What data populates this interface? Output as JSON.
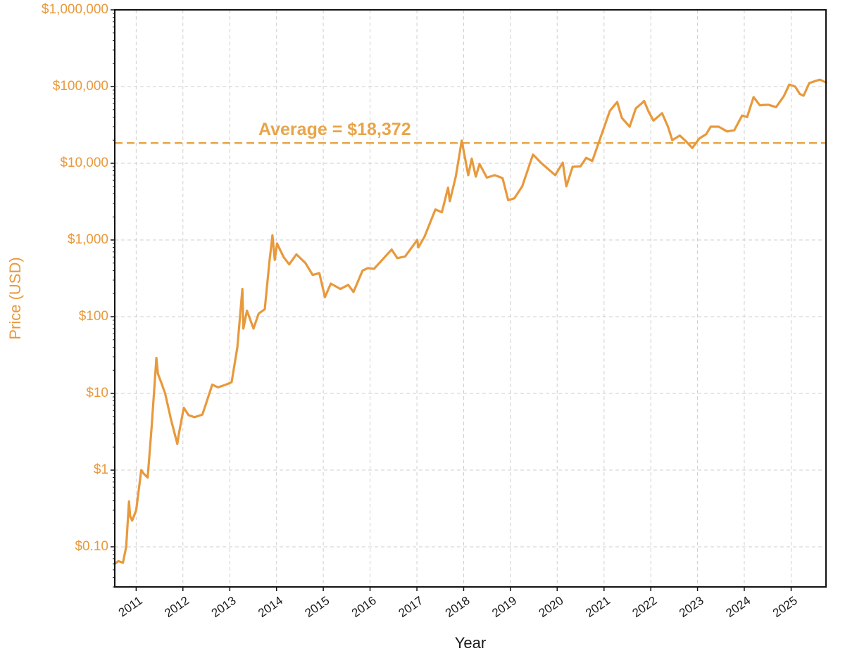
{
  "chart_data": {
    "type": "line",
    "xlabel": "Year",
    "ylabel": "Price (USD)",
    "y_scale": "log",
    "ylim": [
      0.03,
      1000000
    ],
    "xlim": [
      "2010-07-18",
      "2025-09-30"
    ],
    "grid": true,
    "colors": {
      "line": "#e8993c",
      "average": "#e8a549",
      "axis_text": "#e8993c"
    },
    "y_ticks": [
      {
        "value": 0.1,
        "label": "$0.10"
      },
      {
        "value": 1,
        "label": "$1"
      },
      {
        "value": 10,
        "label": "$10"
      },
      {
        "value": 100,
        "label": "$100"
      },
      {
        "value": 1000,
        "label": "$1,000"
      },
      {
        "value": 10000,
        "label": "$10,000"
      },
      {
        "value": 100000,
        "label": "$100,000"
      },
      {
        "value": 1000000,
        "label": "$1,000,000"
      }
    ],
    "x_ticks": [
      {
        "value": "2011-01-01",
        "label": "2011"
      },
      {
        "value": "2012-01-01",
        "label": "2012"
      },
      {
        "value": "2013-01-01",
        "label": "2013"
      },
      {
        "value": "2014-01-01",
        "label": "2014"
      },
      {
        "value": "2015-01-01",
        "label": "2015"
      },
      {
        "value": "2016-01-01",
        "label": "2016"
      },
      {
        "value": "2017-01-01",
        "label": "2017"
      },
      {
        "value": "2018-01-01",
        "label": "2018"
      },
      {
        "value": "2019-01-01",
        "label": "2019"
      },
      {
        "value": "2020-01-01",
        "label": "2020"
      },
      {
        "value": "2021-01-01",
        "label": "2021"
      },
      {
        "value": "2022-01-01",
        "label": "2022"
      },
      {
        "value": "2023-01-01",
        "label": "2023"
      },
      {
        "value": "2024-01-01",
        "label": "2024"
      },
      {
        "value": "2025-01-01",
        "label": "2025"
      }
    ],
    "average": {
      "value": 18372,
      "label": "Average = $18,372"
    },
    "series": [
      {
        "x": [
          "2010-07-18",
          "2010-08-15",
          "2010-09-20",
          "2010-10-15",
          "2010-11-06",
          "2010-11-15",
          "2010-12-01",
          "2011-01-01",
          "2011-02-10",
          "2011-03-01",
          "2011-04-01",
          "2011-05-01",
          "2011-06-08",
          "2011-06-20",
          "2011-07-15",
          "2011-08-15",
          "2011-10-01",
          "2011-11-18",
          "2011-12-01",
          "2012-01-08",
          "2012-02-15",
          "2012-04-01",
          "2012-06-01",
          "2012-07-01",
          "2012-08-17",
          "2012-10-01",
          "2012-12-01",
          "2013-01-15",
          "2013-03-01",
          "2013-04-09",
          "2013-04-17",
          "2013-05-15",
          "2013-07-05",
          "2013-08-15",
          "2013-10-01",
          "2013-11-05",
          "2013-11-30",
          "2013-12-18",
          "2014-01-05",
          "2014-02-25",
          "2014-04-10",
          "2014-06-05",
          "2014-08-15",
          "2014-10-10",
          "2014-12-01",
          "2015-01-14",
          "2015-03-01",
          "2015-05-15",
          "2015-07-15",
          "2015-08-25",
          "2015-11-04",
          "2015-12-15",
          "2016-02-01",
          "2016-06-18",
          "2016-08-01",
          "2016-10-01",
          "2017-01-04",
          "2017-01-12",
          "2017-03-01",
          "2017-05-25",
          "2017-07-15",
          "2017-09-01",
          "2017-09-15",
          "2017-11-01",
          "2017-12-17",
          "2018-02-06",
          "2018-03-05",
          "2018-04-06",
          "2018-05-05",
          "2018-07-01",
          "2018-09-01",
          "2018-11-01",
          "2018-12-15",
          "2019-02-01",
          "2019-04-03",
          "2019-06-26",
          "2019-09-01",
          "2019-12-17",
          "2020-02-14",
          "2020-03-13",
          "2020-05-01",
          "2020-07-01",
          "2020-08-15",
          "2020-10-01",
          "2020-11-20",
          "2020-12-31",
          "2021-02-15",
          "2021-04-14",
          "2021-05-20",
          "2021-07-20",
          "2021-09-06",
          "2021-10-20",
          "2021-11-10",
          "2021-12-15",
          "2022-01-22",
          "2022-03-30",
          "2022-05-15",
          "2022-06-18",
          "2022-08-15",
          "2022-10-01",
          "2022-11-21",
          "2023-01-15",
          "2023-03-10",
          "2023-04-14",
          "2023-06-15",
          "2023-08-20",
          "2023-10-15",
          "2023-12-15",
          "2024-01-23",
          "2024-03-14",
          "2024-05-01",
          "2024-07-05",
          "2024-09-06",
          "2024-11-05",
          "2024-12-17",
          "2025-02-01",
          "2025-03-10",
          "2025-04-08",
          "2025-05-22",
          "2025-07-14",
          "2025-08-14",
          "2025-09-30"
        ],
        "y": [
          0.06,
          0.065,
          0.062,
          0.1,
          0.39,
          0.25,
          0.22,
          0.3,
          1.0,
          0.9,
          0.8,
          3.5,
          29,
          18,
          14,
          10,
          4.5,
          2.2,
          3.0,
          6.5,
          5.2,
          4.9,
          5.3,
          7.5,
          13,
          12,
          13,
          14,
          40,
          230,
          70,
          120,
          70,
          110,
          125,
          500,
          1150,
          550,
          900,
          600,
          480,
          650,
          500,
          350,
          370,
          180,
          270,
          230,
          260,
          210,
          400,
          430,
          420,
          750,
          580,
          610,
          1000,
          800,
          1100,
          2500,
          2300,
          4800,
          3200,
          6800,
          19800,
          7000,
          11500,
          6700,
          9800,
          6500,
          7000,
          6400,
          3300,
          3500,
          5000,
          13000,
          10000,
          7000,
          10200,
          5000,
          9000,
          9100,
          11800,
          10700,
          18500,
          29000,
          48000,
          63000,
          39000,
          30000,
          52000,
          60000,
          65000,
          47000,
          36000,
          45000,
          30000,
          20000,
          23000,
          19500,
          15800,
          21000,
          24000,
          30000,
          30000,
          26000,
          27000,
          42000,
          40000,
          73000,
          57000,
          58000,
          54000,
          75000,
          106000,
          100000,
          80000,
          76000,
          111000,
          119000,
          123000,
          113000
        ]
      }
    ]
  }
}
